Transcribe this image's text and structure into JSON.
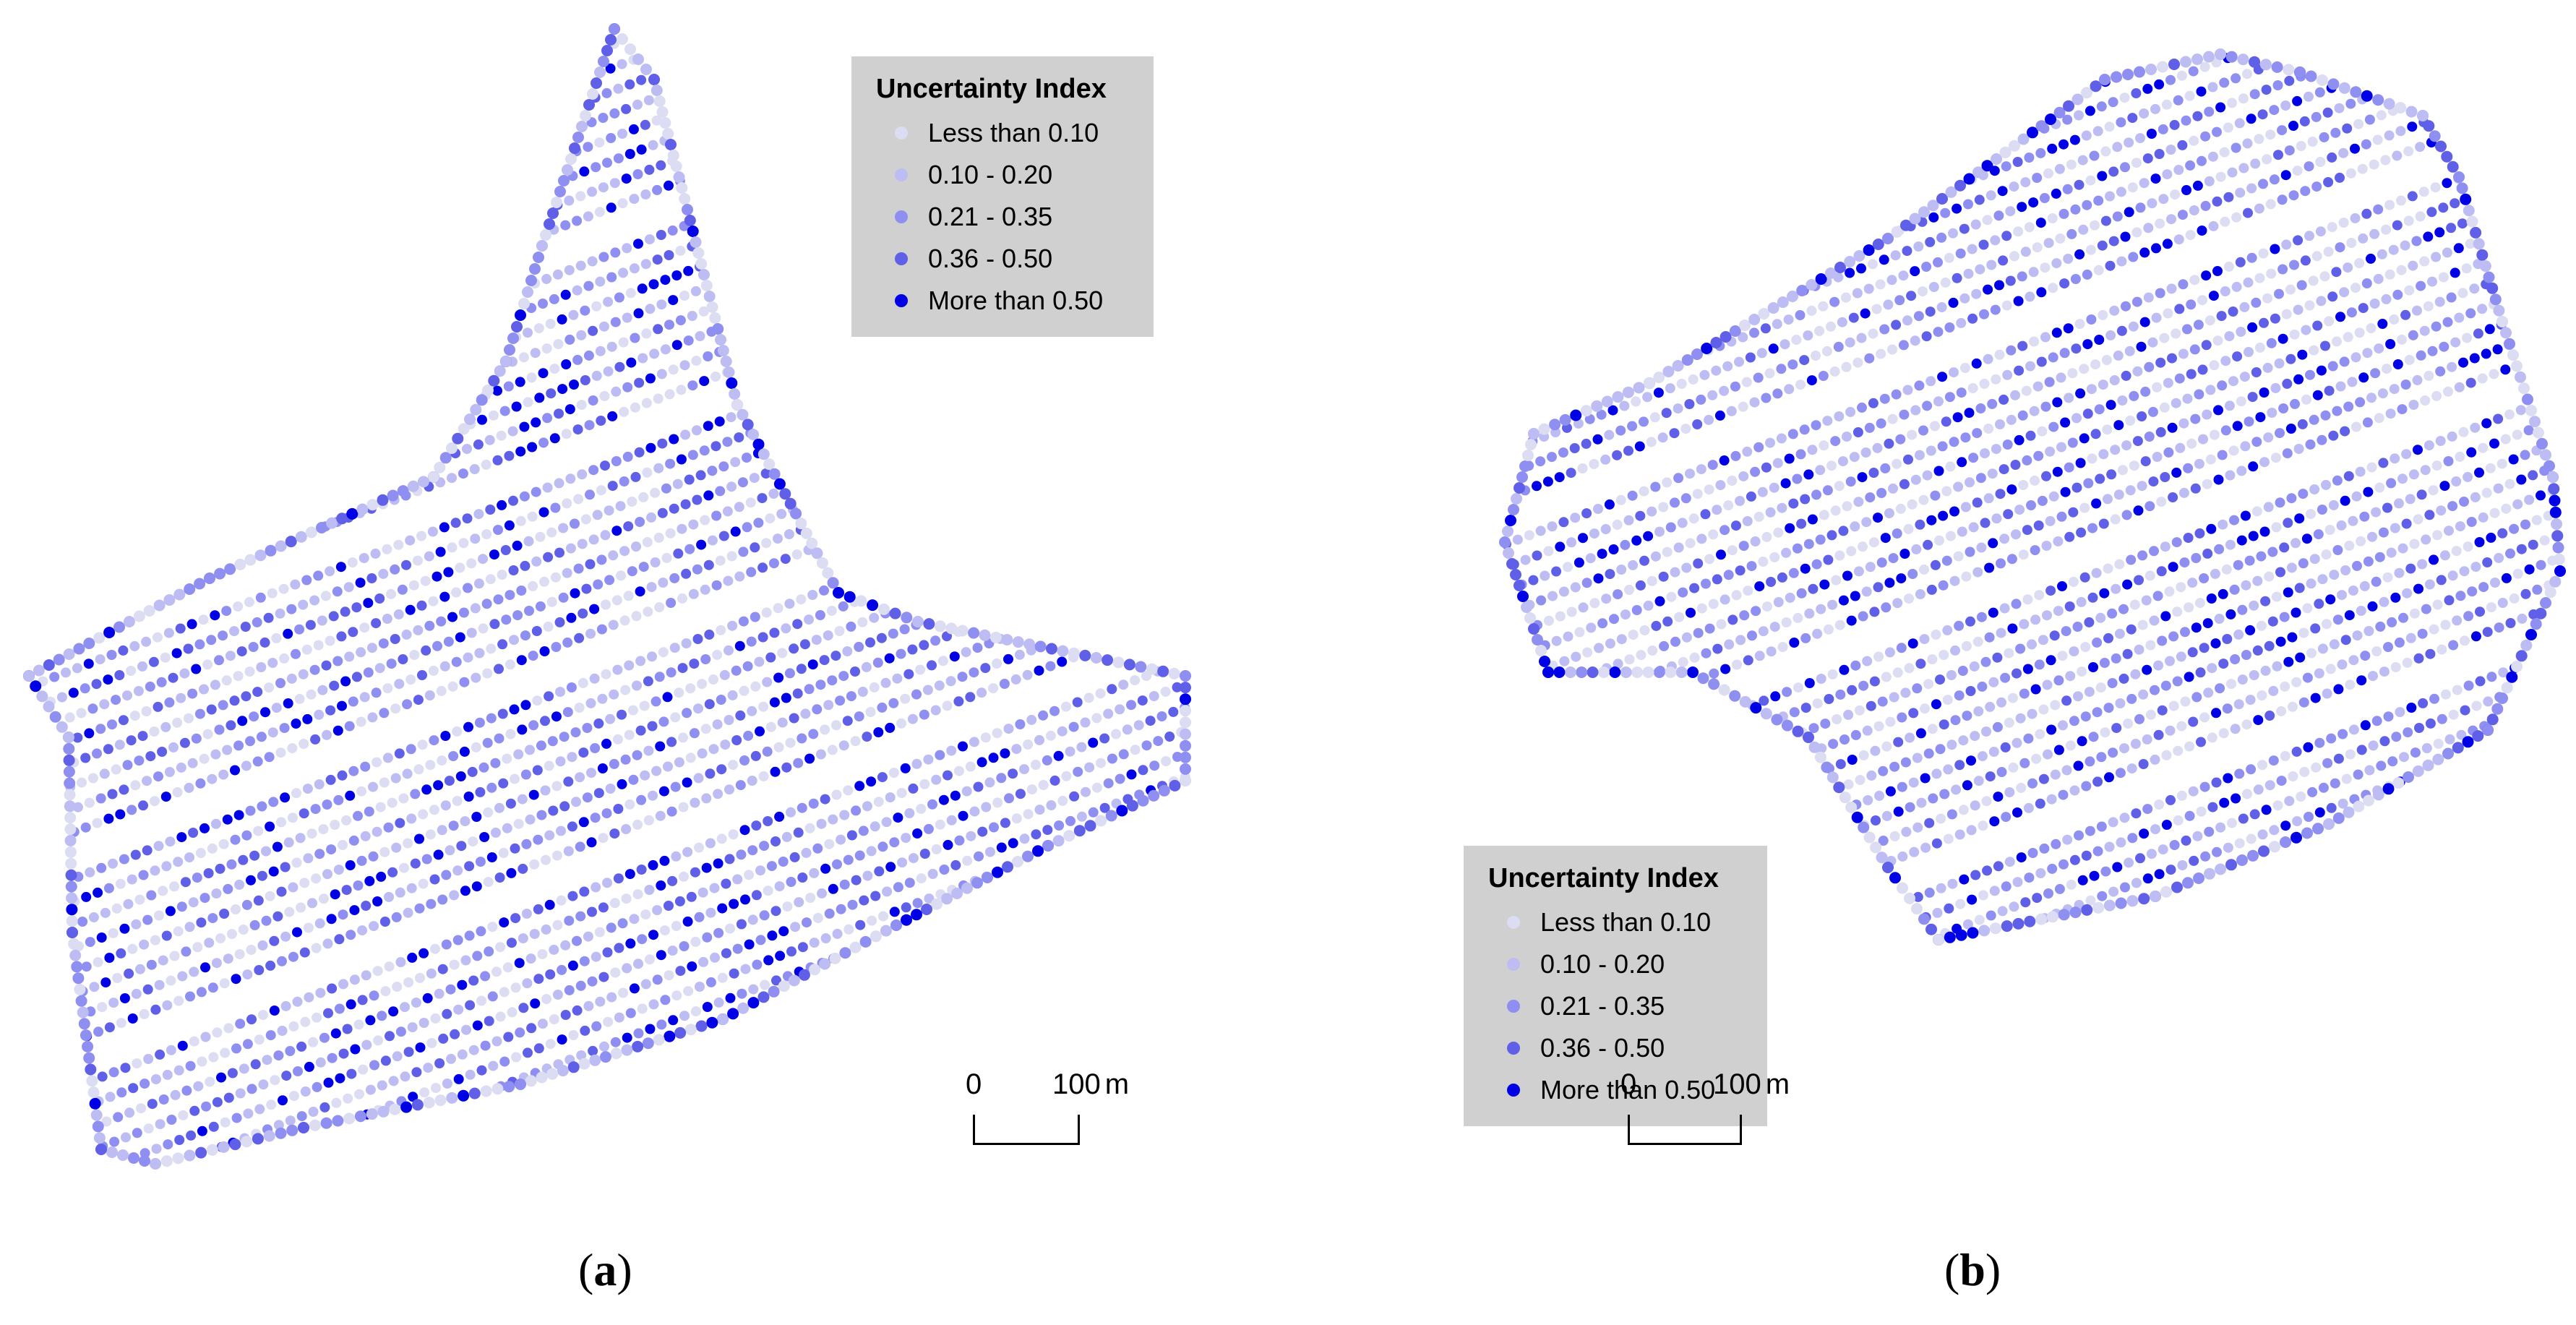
{
  "legend": {
    "title": "Uncertainty Index",
    "items": [
      {
        "label": "Less than 0.10",
        "color": "#dcdcf2"
      },
      {
        "label": "0.10 - 0.20",
        "color": "#bdbdf4"
      },
      {
        "label": "0.21 - 0.35",
        "color": "#8f8ff2"
      },
      {
        "label": "0.36 - 0.50",
        "color": "#5f5fe8"
      },
      {
        "label": "More than 0.50",
        "color": "#0000e6"
      }
    ]
  },
  "scale": {
    "start": "0",
    "end": "100",
    "unit": "m"
  },
  "panels": [
    {
      "caption_letter": "a"
    },
    {
      "caption_letter": "b"
    }
  ]
}
